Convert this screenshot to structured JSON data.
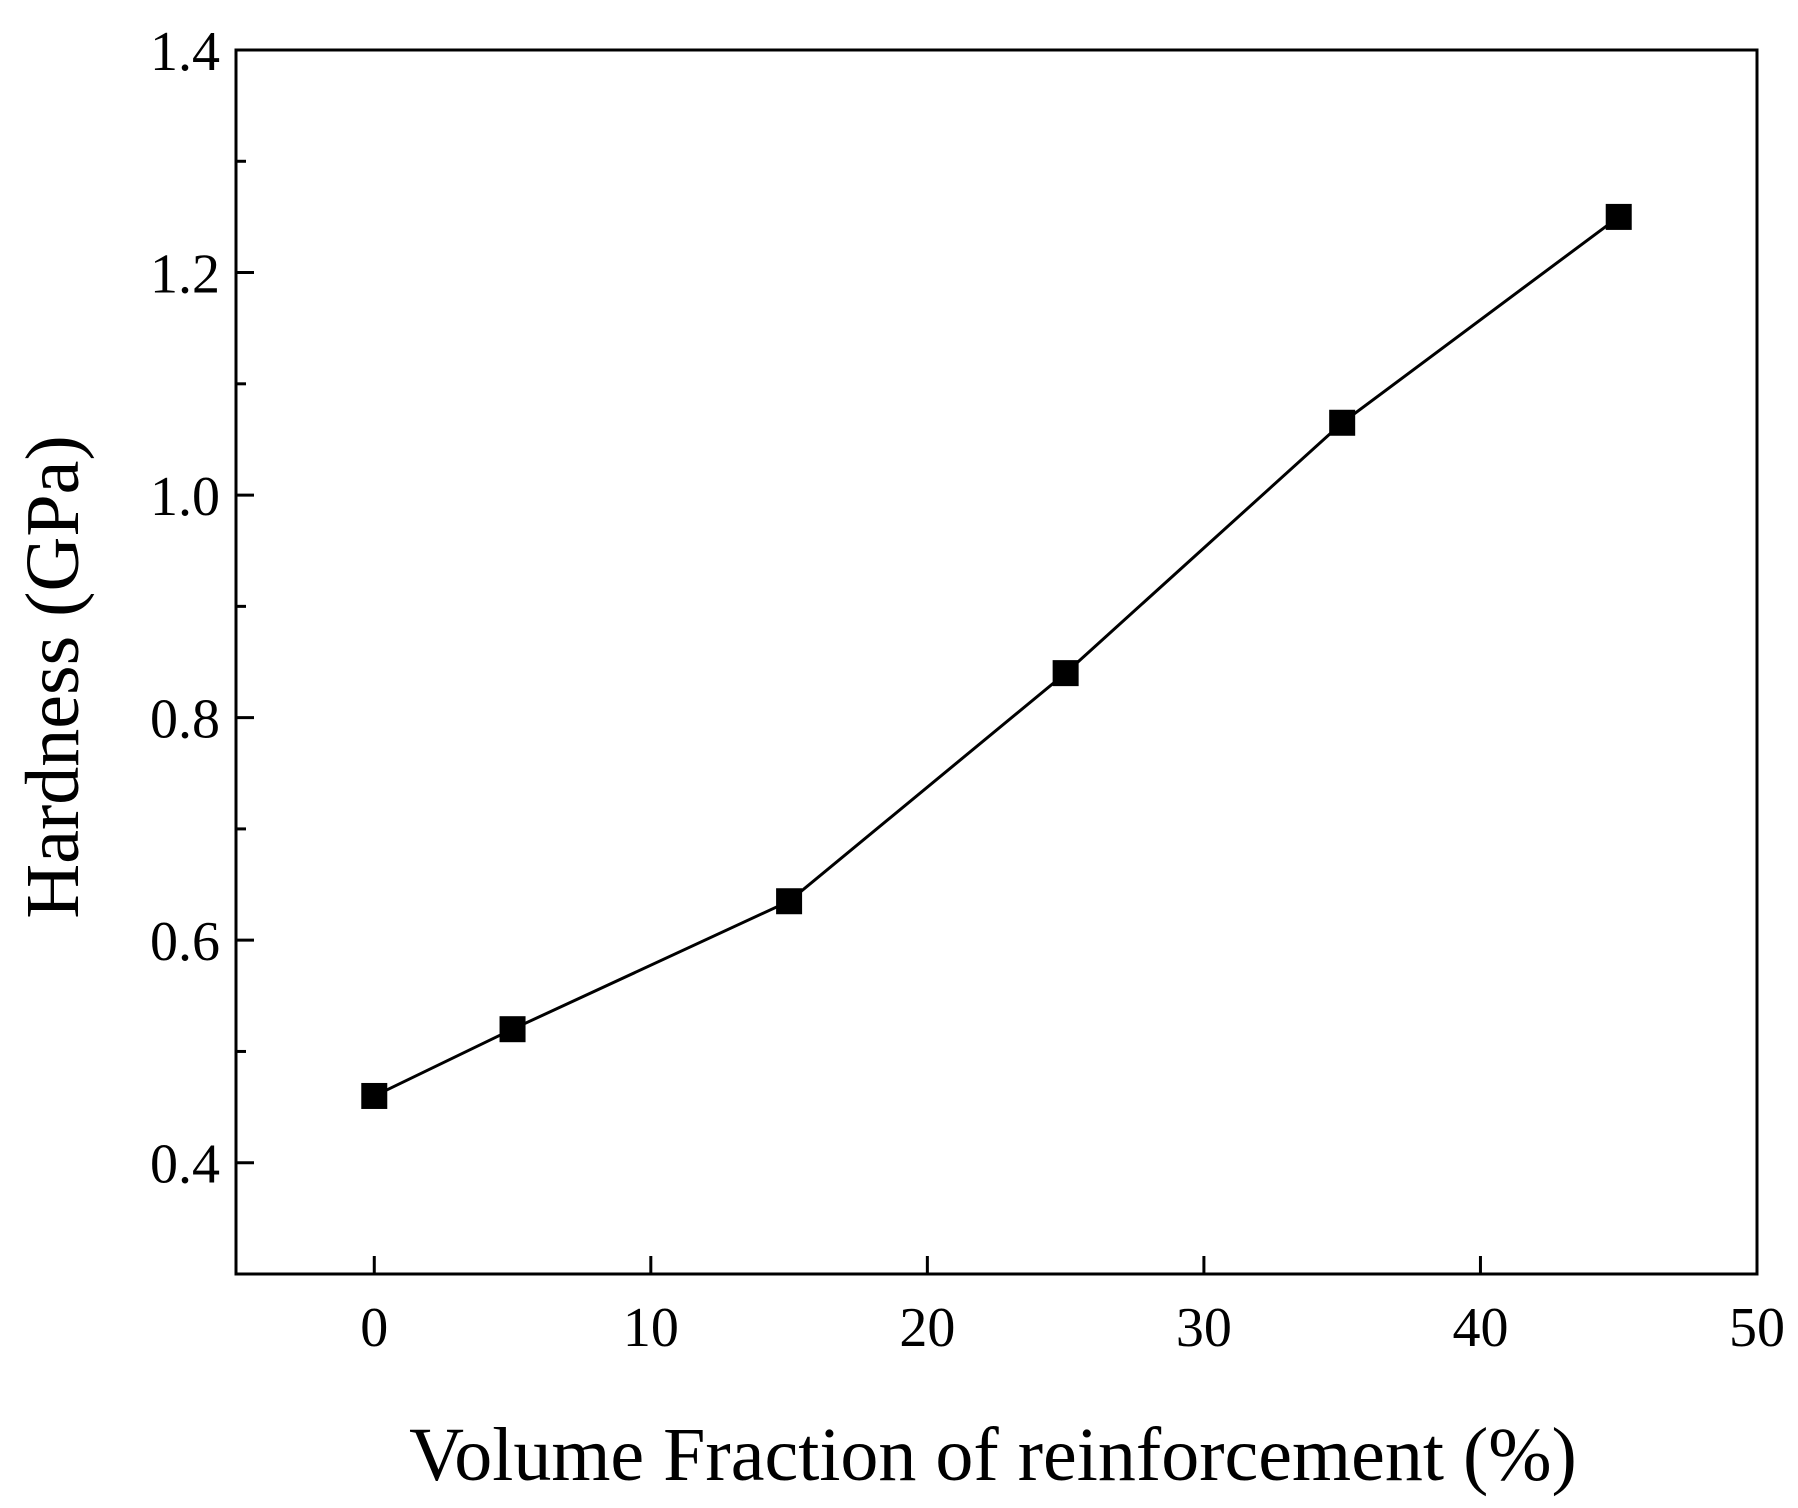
{
  "chart_data": {
    "type": "line",
    "title": "",
    "xlabel": "Volume Fraction of reinforcement (%)",
    "ylabel": "Hardness (GPa)",
    "xlim": [
      -5,
      50
    ],
    "ylim": [
      0.3,
      1.4
    ],
    "xticks": [
      0,
      10,
      20,
      30,
      40,
      50
    ],
    "xtick_labels": [
      "0",
      "10",
      "20",
      "30",
      "40",
      "50"
    ],
    "yticks": [
      0.4,
      0.6,
      0.8,
      1.0,
      1.2,
      1.4
    ],
    "ytick_labels": [
      "0.4",
      "0.6",
      "0.8",
      "1.0",
      "1.2",
      "1.4"
    ],
    "yminor_ticks": [
      0.5,
      0.7,
      0.9,
      1.1,
      1.3
    ],
    "grid": false,
    "marker": "square",
    "color": "#000000",
    "series": [
      {
        "x": [
          0,
          5,
          15,
          25,
          35,
          45
        ],
        "y": [
          0.46,
          0.52,
          0.635,
          0.84,
          1.065,
          1.25
        ]
      }
    ]
  }
}
